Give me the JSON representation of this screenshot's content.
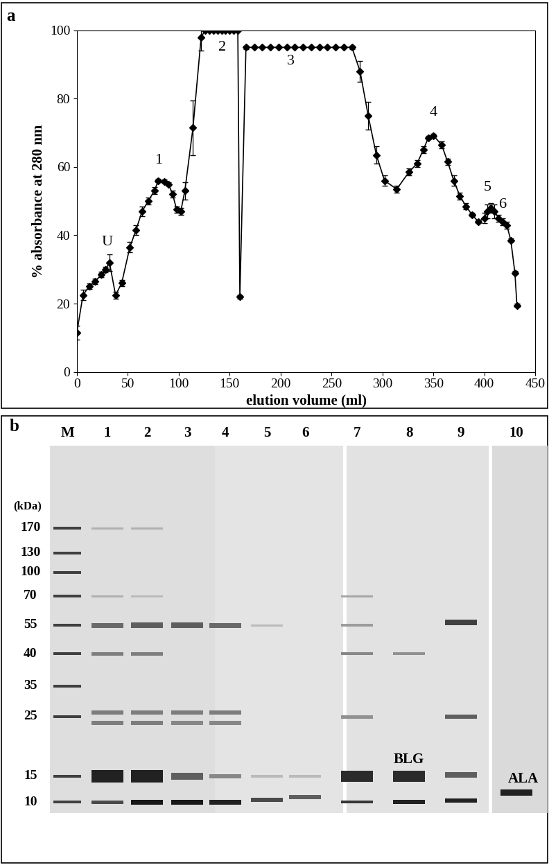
{
  "chart_data": {
    "type": "line",
    "panel_label": "a",
    "x_label": "elution volume (ml)",
    "y_label": "% absorbance at 280 nm",
    "x": [
      0,
      6,
      12,
      18,
      24,
      28,
      32,
      38,
      44,
      52,
      58,
      64,
      70,
      76,
      80,
      86,
      90,
      94,
      98,
      102,
      106,
      114,
      122,
      126,
      130,
      134,
      138,
      142,
      146,
      150,
      154,
      158,
      160,
      166,
      174,
      182,
      190,
      198,
      206,
      214,
      222,
      230,
      238,
      246,
      254,
      262,
      270,
      278,
      286,
      294,
      302,
      314,
      326,
      334,
      340,
      345,
      350,
      358,
      364,
      370,
      376,
      382,
      388,
      394,
      400,
      403,
      406,
      410,
      414,
      418,
      422,
      426,
      430,
      432
    ],
    "values": [
      11.5,
      22.5,
      25,
      26.5,
      28.5,
      30,
      32,
      22.5,
      26,
      36.5,
      41.5,
      47,
      50,
      53,
      56,
      55.8,
      55,
      52,
      47.5,
      47,
      53,
      71.5,
      98,
      100,
      100,
      100,
      100,
      100,
      100,
      100,
      100,
      100,
      22,
      95,
      95,
      95,
      95,
      95,
      95,
      95,
      95,
      95,
      95,
      95,
      95,
      95,
      95,
      88,
      75,
      63.5,
      56,
      53.5,
      58.5,
      61,
      65,
      68.5,
      69.2,
      66.5,
      61.5,
      56,
      51.5,
      48.5,
      46,
      44,
      45,
      47,
      48,
      47,
      45,
      44,
      43,
      38.5,
      29,
      19.5
    ],
    "error": [
      2,
      1.5,
      0.8,
      0.8,
      0.8,
      0.8,
      2.5,
      1,
      1,
      1.5,
      1.5,
      1.5,
      1,
      1,
      0.5,
      0.5,
      0.5,
      1,
      1,
      1,
      2.5,
      8,
      4,
      0,
      0,
      0,
      0,
      0,
      0,
      0,
      0,
      0,
      0.5,
      0.5,
      0,
      0,
      0,
      0,
      0,
      0,
      0,
      0,
      0,
      0,
      0,
      0,
      0.5,
      3,
      4,
      2.5,
      1.5,
      1,
      1,
      1,
      1,
      0.5,
      0.5,
      1,
      1,
      1.5,
      1,
      1,
      0.5,
      0.5,
      1.5,
      2,
      1.5,
      2,
      1,
      1,
      1,
      0.5,
      0.5,
      0.5
    ],
    "color": "#000000",
    "marker": "diamond",
    "annotations": [
      {
        "text": "U",
        "x": 30,
        "y": 36
      },
      {
        "text": "1",
        "x": 80,
        "y": 60
      },
      {
        "text": "2",
        "x": 143,
        "y": 93
      },
      {
        "text": "3",
        "x": 210,
        "y": 89
      },
      {
        "text": "4",
        "x": 350,
        "y": 74
      },
      {
        "text": "5",
        "x": 403,
        "y": 52
      },
      {
        "text": "6",
        "x": 418,
        "y": 47
      }
    ],
    "xlim": [
      0,
      450
    ],
    "xticks": [
      0,
      50,
      100,
      150,
      200,
      250,
      300,
      350,
      400,
      450
    ],
    "ylim": [
      0,
      100
    ],
    "yticks": [
      0,
      20,
      40,
      60,
      80,
      100
    ]
  },
  "gel": {
    "panel_label": "b",
    "unit_label": "(kDa)",
    "marker_lane": "M",
    "lanes": [
      "1",
      "2",
      "3",
      "4",
      "5",
      "6",
      "7",
      "8",
      "9",
      "10"
    ],
    "marker_sizes": [
      170,
      130,
      100,
      70,
      55,
      40,
      35,
      25,
      15,
      10
    ],
    "band_labels": [
      {
        "text": "BLG",
        "lane": "8"
      },
      {
        "text": "ALA",
        "lane": "10"
      }
    ]
  }
}
